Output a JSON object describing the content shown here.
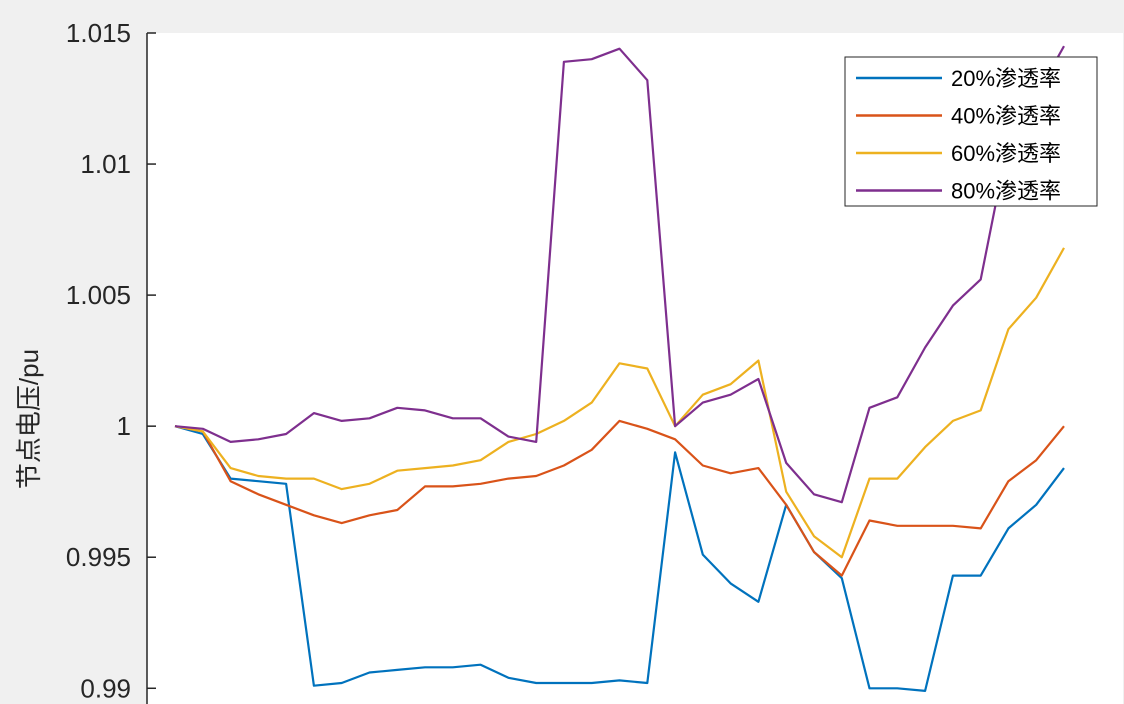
{
  "chart_data": {
    "type": "line",
    "x": [
      1,
      2,
      3,
      4,
      5,
      6,
      7,
      8,
      9,
      10,
      11,
      12,
      13,
      14,
      15,
      16,
      17,
      18,
      19,
      20,
      21,
      22,
      23,
      24,
      25,
      26,
      27,
      28,
      29,
      30,
      31,
      32,
      33
    ],
    "ylabel": "节点电压/pu",
    "xlabel": "",
    "title": "",
    "ylim": [
      0.9894,
      1.015
    ],
    "yticks": [
      0.99,
      0.995,
      1,
      1.005,
      1.01,
      1.015
    ],
    "ytick_labels": [
      "0.99",
      "0.995",
      "1",
      "1.005",
      "1.01",
      "1.015"
    ],
    "grid": false,
    "legend": {
      "position": "top-right"
    },
    "series": [
      {
        "name": "20%渗透率",
        "color": "#0072BD",
        "values": [
          1.0,
          0.9997,
          0.998,
          0.9979,
          0.9978,
          0.9901,
          0.9902,
          0.9906,
          0.9907,
          0.9908,
          0.9908,
          0.9909,
          0.9904,
          0.9902,
          0.9902,
          0.9902,
          0.9903,
          0.9902,
          0.999,
          0.9951,
          0.994,
          0.9933,
          0.997,
          0.9952,
          0.9942,
          0.99,
          0.99,
          0.9899,
          0.9943,
          0.9943,
          0.9961,
          0.997,
          0.9984
        ]
      },
      {
        "name": "40%渗透率",
        "color": "#D95319",
        "values": [
          1.0,
          0.9998,
          0.9979,
          0.9974,
          0.997,
          0.9966,
          0.9963,
          0.9966,
          0.9968,
          0.9977,
          0.9977,
          0.9978,
          0.998,
          0.9981,
          0.9985,
          0.9991,
          1.0002,
          0.9999,
          0.9995,
          0.9985,
          0.9982,
          0.9984,
          0.997,
          0.9952,
          0.9943,
          0.9964,
          0.9962,
          0.9962,
          0.9962,
          0.9961,
          0.9979,
          0.9987,
          1.0
        ]
      },
      {
        "name": "60%渗透率",
        "color": "#EDB120",
        "values": [
          1.0,
          0.9998,
          0.9984,
          0.9981,
          0.998,
          0.998,
          0.9976,
          0.9978,
          0.9983,
          0.9984,
          0.9985,
          0.9987,
          0.9994,
          0.9997,
          1.0002,
          1.0009,
          1.0024,
          1.0022,
          1.0,
          1.0012,
          1.0016,
          1.0025,
          0.9975,
          0.9958,
          0.995,
          0.998,
          0.998,
          0.9992,
          1.0002,
          1.0006,
          1.0037,
          1.0049,
          1.0068
        ]
      },
      {
        "name": "80%渗透率",
        "color": "#7E2F8E",
        "values": [
          1.0,
          0.9999,
          0.9994,
          0.9995,
          0.9997,
          1.0005,
          1.0002,
          1.0003,
          1.0007,
          1.0006,
          1.0003,
          1.0003,
          0.9996,
          0.9994,
          1.0139,
          1.014,
          1.0144,
          1.0132,
          1.0,
          1.0009,
          1.0012,
          1.0018,
          0.9986,
          0.9974,
          0.9971,
          1.0007,
          1.0011,
          1.003,
          1.0046,
          1.0056,
          1.0109,
          1.0126,
          1.0145
        ]
      }
    ]
  }
}
